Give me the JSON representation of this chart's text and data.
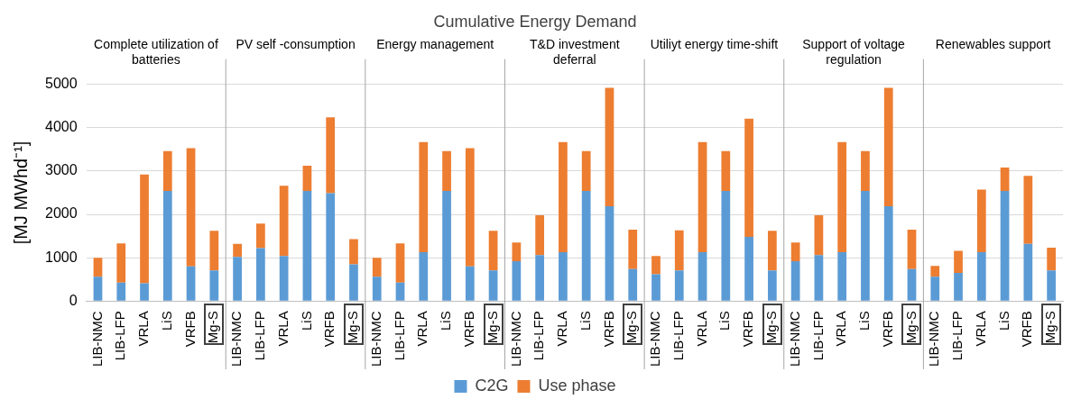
{
  "chart_data": {
    "type": "bar",
    "title": "Cumulative Energy Demand",
    "ylabel": "[MJ MWhd⁻¹]",
    "annotations": [
      "Complete utilization of batteries",
      "PV self -consumption",
      "Energy management",
      "T&D investment deferral",
      "Utiliyt energy time-shift",
      "Support of voltage regulation",
      "Renewables support"
    ],
    "categories": [
      "LIB-NMC",
      "LIB-LFP",
      "VRLA",
      "LiS",
      "VRFB",
      "Mg-S",
      "LIB-NMC",
      "LIB-LFP",
      "VRLA",
      "LiS",
      "VRFB",
      "Mg-S",
      "LIB-NMC",
      "LIB-LFP",
      "VRLA",
      "LiS",
      "VRFB",
      "Mg-S",
      "LIB-NMC",
      "LIB-LFP",
      "VRLA",
      "LiS",
      "VRFB",
      "Mg-S",
      "LIB-NMC",
      "LIB-LFP",
      "VRLA",
      "LiS",
      "VRFB",
      "Mg-S",
      "LIB-NMC",
      "LIB-LFP",
      "VRLA",
      "LiS",
      "VRFB",
      "Mg-S",
      "LIB-NMC",
      "LIB-LFP",
      "VRLA",
      "LiS",
      "VRFB",
      "Mg-S"
    ],
    "stacked": true,
    "series": [
      {
        "name": "C2G",
        "color": "#5b9bd5",
        "values": [
          560,
          430,
          410,
          2540,
          800,
          710,
          1020,
          1220,
          1040,
          2540,
          2490,
          850,
          560,
          430,
          1130,
          2540,
          800,
          710,
          920,
          1060,
          1130,
          2540,
          2190,
          740,
          620,
          710,
          1130,
          2540,
          1480,
          710,
          920,
          1060,
          1130,
          2540,
          2190,
          740,
          560,
          650,
          1130,
          2540,
          1320,
          710
        ]
      },
      {
        "name": "Use phase",
        "color": "#ed7d31",
        "values": [
          440,
          900,
          2510,
          920,
          2730,
          910,
          300,
          570,
          1620,
          580,
          1750,
          580,
          440,
          900,
          2540,
          920,
          2730,
          910,
          430,
          920,
          2540,
          920,
          2730,
          910,
          420,
          920,
          2540,
          920,
          2730,
          910,
          430,
          920,
          2540,
          920,
          2730,
          910,
          250,
          510,
          1440,
          540,
          1570,
          520
        ]
      }
    ],
    "ylim": [
      0,
      5000
    ],
    "yticks": [
      0,
      1000,
      2000,
      3000,
      4000,
      5000
    ],
    "grid": "y",
    "legend": "bottom"
  }
}
